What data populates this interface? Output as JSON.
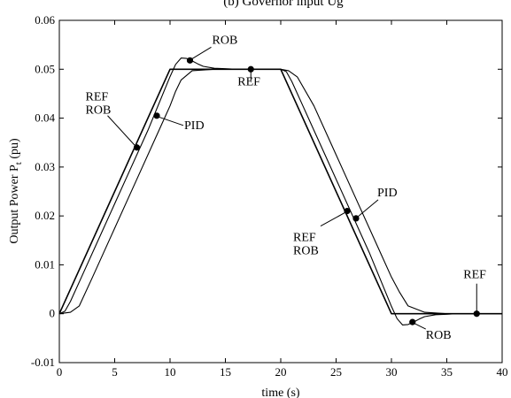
{
  "chart_data": {
    "type": "line",
    "title": "(b) Governor input Ug",
    "xlabel": "time (s)",
    "ylabel_main": "Output Power P",
    "ylabel_sub": "t",
    "ylabel_unit": " (pu)",
    "xlim": [
      0,
      40
    ],
    "ylim": [
      -0.01,
      0.06
    ],
    "xticks": [
      0,
      5,
      10,
      15,
      20,
      25,
      30,
      35,
      40
    ],
    "xtick_labels": [
      "0",
      "5",
      "10",
      "15",
      "20",
      "25",
      "30",
      "35",
      "40"
    ],
    "yticks": [
      -0.01,
      0,
      0.01,
      0.02,
      0.03,
      0.04,
      0.05,
      0.06
    ],
    "ytick_labels": [
      "-0.01",
      "0",
      "0.01",
      "0.02",
      "0.03",
      "0.04",
      "0.05",
      "0.06"
    ],
    "grid": false,
    "series": [
      {
        "name": "REF",
        "x": [
          0,
          10,
          20,
          30,
          40
        ],
        "y": [
          0,
          0.05,
          0.05,
          0,
          0
        ]
      },
      {
        "name": "ROB",
        "x": [
          0,
          0.5,
          1,
          2,
          4,
          6,
          8,
          10,
          10.5,
          11,
          11.5,
          12,
          12.5,
          13,
          14,
          15,
          16,
          17,
          18,
          19,
          20,
          20.5,
          21,
          22,
          24,
          26,
          28,
          30,
          30.5,
          31,
          31.5,
          32,
          32.5,
          33,
          34,
          35,
          36,
          37,
          38,
          40
        ],
        "y": [
          0,
          0.0005,
          0.0025,
          0.0075,
          0.0175,
          0.0275,
          0.0375,
          0.0485,
          0.051,
          0.0523,
          0.0522,
          0.0517,
          0.0511,
          0.0506,
          0.0502,
          0.0501,
          0.05,
          0.05,
          0.05,
          0.05,
          0.05,
          0.0495,
          0.0475,
          0.0425,
          0.0325,
          0.0225,
          0.0125,
          0.0015,
          -0.001,
          -0.0023,
          -0.0022,
          -0.0017,
          -0.0011,
          -0.0006,
          -0.0002,
          -0.0001,
          0,
          0,
          0,
          0
        ]
      },
      {
        "name": "PID",
        "x": [
          0,
          1,
          1.8,
          3,
          5,
          7,
          9,
          10,
          10.5,
          11,
          12,
          14,
          16,
          18,
          20,
          20.7,
          21.5,
          23,
          25,
          27,
          29,
          30,
          30.7,
          31.5,
          33,
          35,
          40
        ],
        "y": [
          0,
          0.0003,
          0.0016,
          0.0075,
          0.0175,
          0.0275,
          0.0375,
          0.0425,
          0.0455,
          0.0478,
          0.0497,
          0.05,
          0.05,
          0.05,
          0.05,
          0.0497,
          0.0484,
          0.0425,
          0.0325,
          0.0225,
          0.0125,
          0.0075,
          0.0045,
          0.0016,
          0.0003,
          0,
          0
        ]
      }
    ],
    "annotations": [
      {
        "lines": [
          "ROB"
        ],
        "point": [
          11.8,
          0.0518
        ]
      },
      {
        "lines": [
          "REF"
        ],
        "point": [
          17.3,
          0.05
        ]
      },
      {
        "lines": [
          "REF",
          "ROB"
        ],
        "point": [
          7.0,
          0.034
        ]
      },
      {
        "lines": [
          "PID"
        ],
        "point": [
          8.8,
          0.0405
        ]
      },
      {
        "lines": [
          "PID"
        ],
        "point": [
          26.8,
          0.0195
        ]
      },
      {
        "lines": [
          "REF",
          "ROB"
        ],
        "point": [
          26.0,
          0.021
        ]
      },
      {
        "lines": [
          "REF"
        ],
        "point": [
          37.7,
          0.0
        ]
      },
      {
        "lines": [
          "ROB"
        ],
        "point": [
          31.9,
          -0.0017
        ]
      }
    ]
  }
}
